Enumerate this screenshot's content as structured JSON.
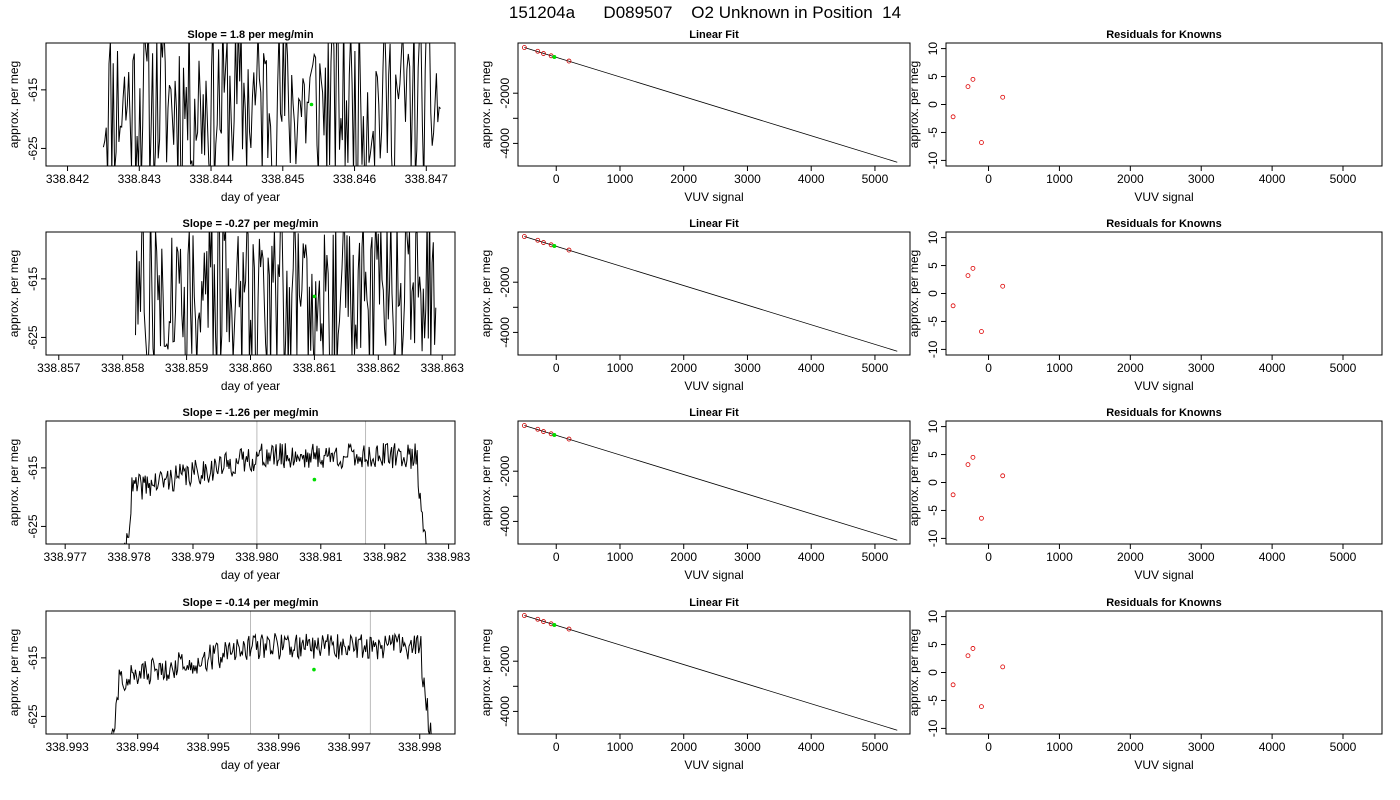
{
  "figure": {
    "title": "151204a      D089507    O2 Unknown in Position  14"
  },
  "chart_data": [
    {
      "type": "line",
      "panel": "timeseries",
      "row": 1,
      "title": "Slope =  1.8  per meg/min",
      "xlabel": "day of year",
      "ylabel": "approx. per meg",
      "xlim": [
        338.8417,
        338.8474
      ],
      "ylim": [
        -628,
        -607
      ],
      "xticks": [
        338.842,
        338.843,
        338.844,
        338.845,
        338.846,
        338.847
      ],
      "xtick_labels": [
        "338.842",
        "338.843",
        "338.844",
        "338.845",
        "338.846",
        "338.847"
      ],
      "yticks": [
        -625,
        -615
      ],
      "ytick_labels": [
        "-625",
        "-615"
      ],
      "x_range": [
        338.8425,
        338.8472
      ],
      "vlines": [],
      "marker": {
        "x": 338.8454,
        "y": -617.5,
        "color": "#00dd00"
      },
      "pattern": "noisy",
      "seed": 11
    },
    {
      "type": "line",
      "panel": "timeseries",
      "row": 2,
      "title": "Slope =  -0.27  per meg/min",
      "xlabel": "day of year",
      "ylabel": "approx. per meg",
      "xlim": [
        338.8568,
        338.8632
      ],
      "ylim": [
        -628,
        -607
      ],
      "xticks": [
        338.857,
        338.858,
        338.859,
        338.86,
        338.861,
        338.862,
        338.863
      ],
      "xtick_labels": [
        "338.857",
        "338.858",
        "338.859",
        "338.860",
        "338.861",
        "338.862",
        "338.863"
      ],
      "yticks": [
        -625,
        -615
      ],
      "ytick_labels": [
        "-625",
        "-615"
      ],
      "x_range": [
        338.8582,
        338.8629
      ],
      "vlines": [],
      "marker": {
        "x": 338.861,
        "y": -618,
        "color": "#00dd00"
      },
      "pattern": "noisy",
      "seed": 27
    },
    {
      "type": "line",
      "panel": "timeseries",
      "row": 3,
      "title": "Slope =  -1.26  per meg/min",
      "xlabel": "day of year",
      "ylabel": "approx. per meg",
      "xlim": [
        338.9767,
        338.9831
      ],
      "ylim": [
        -628,
        -607
      ],
      "xticks": [
        338.977,
        338.978,
        338.979,
        338.98,
        338.981,
        338.982,
        338.983
      ],
      "xtick_labels": [
        "338.977",
        "338.978",
        "338.979",
        "338.980",
        "338.981",
        "338.982",
        "338.983"
      ],
      "yticks": [
        -625,
        -615
      ],
      "ytick_labels": [
        "-625",
        "-615"
      ],
      "x_range": [
        338.9779,
        338.9827
      ],
      "vlines": [
        338.98,
        338.9817
      ],
      "marker": {
        "x": 338.9809,
        "y": -617,
        "color": "#00dd00"
      },
      "pattern": "smooth",
      "seed": 41
    },
    {
      "type": "line",
      "panel": "timeseries",
      "row": 4,
      "title": "Slope =  -0.14  per meg/min",
      "xlabel": "day of year",
      "ylabel": "approx. per meg",
      "xlim": [
        338.9927,
        338.9985
      ],
      "ylim": [
        -628,
        -607
      ],
      "xticks": [
        338.993,
        338.994,
        338.995,
        338.996,
        338.997,
        338.998
      ],
      "xtick_labels": [
        "338.993",
        "338.994",
        "338.995",
        "338.996",
        "338.997",
        "338.998"
      ],
      "yticks": [
        -625,
        -615
      ],
      "ytick_labels": [
        "-625",
        "-615"
      ],
      "x_range": [
        338.9936,
        338.9982
      ],
      "vlines": [
        338.9956,
        338.9973
      ],
      "marker": {
        "x": 338.9965,
        "y": -617,
        "color": "#00dd00"
      },
      "pattern": "smooth",
      "seed": 57
    },
    {
      "type": "scatter",
      "panel": "linearfit",
      "row": 1,
      "title": "Linear Fit",
      "xlabel": "VUV signal",
      "ylabel": "approx. per meg",
      "xlim": [
        -600,
        5550
      ],
      "ylim": [
        -4900,
        0
      ],
      "xticks": [
        0,
        1000,
        2000,
        3000,
        4000,
        5000
      ],
      "xtick_labels": [
        "0",
        "1000",
        "2000",
        "3000",
        "4000",
        "5000"
      ],
      "yticks": [
        -4000,
        -3000,
        -2000
      ],
      "ytick_labels": [
        "-4000",
        "",
        "-2000"
      ],
      "line": {
        "x": [
          -500,
          5350
        ],
        "y": [
          -180,
          -4750
        ]
      },
      "points": [
        {
          "x": -500,
          "y": -180
        },
        {
          "x": -290,
          "y": -330
        },
        {
          "x": -200,
          "y": -420
        },
        {
          "x": -80,
          "y": -510
        },
        {
          "x": 200,
          "y": -720
        }
      ],
      "unknown": {
        "x": -30,
        "y": -560
      }
    },
    {
      "type": "scatter",
      "panel": "linearfit",
      "row": 2,
      "title": "Linear Fit",
      "xlabel": "VUV signal",
      "ylabel": "approx. per meg",
      "xlim": [
        -600,
        5550
      ],
      "ylim": [
        -4900,
        0
      ],
      "xticks": [
        0,
        1000,
        2000,
        3000,
        4000,
        5000
      ],
      "xtick_labels": [
        "0",
        "1000",
        "2000",
        "3000",
        "4000",
        "5000"
      ],
      "yticks": [
        -4000,
        -3000,
        -2000
      ],
      "ytick_labels": [
        "-4000",
        "",
        "-2000"
      ],
      "line": {
        "x": [
          -500,
          5350
        ],
        "y": [
          -180,
          -4750
        ]
      },
      "points": [
        {
          "x": -500,
          "y": -180
        },
        {
          "x": -290,
          "y": -330
        },
        {
          "x": -200,
          "y": -420
        },
        {
          "x": -80,
          "y": -510
        },
        {
          "x": 200,
          "y": -720
        }
      ],
      "unknown": {
        "x": -30,
        "y": -560
      }
    },
    {
      "type": "scatter",
      "panel": "linearfit",
      "row": 3,
      "title": "Linear Fit",
      "xlabel": "VUV signal",
      "ylabel": "approx. per meg",
      "xlim": [
        -600,
        5550
      ],
      "ylim": [
        -4900,
        0
      ],
      "xticks": [
        0,
        1000,
        2000,
        3000,
        4000,
        5000
      ],
      "xtick_labels": [
        "0",
        "1000",
        "2000",
        "3000",
        "4000",
        "5000"
      ],
      "yticks": [
        -4000,
        -3000,
        -2000
      ],
      "ytick_labels": [
        "-4000",
        "",
        "-2000"
      ],
      "line": {
        "x": [
          -500,
          5350
        ],
        "y": [
          -180,
          -4750
        ]
      },
      "points": [
        {
          "x": -500,
          "y": -180
        },
        {
          "x": -290,
          "y": -330
        },
        {
          "x": -200,
          "y": -420
        },
        {
          "x": -80,
          "y": -510
        },
        {
          "x": 200,
          "y": -720
        }
      ],
      "unknown": {
        "x": -30,
        "y": -560
      }
    },
    {
      "type": "scatter",
      "panel": "linearfit",
      "row": 4,
      "title": "Linear Fit",
      "xlabel": "VUV signal",
      "ylabel": "approx. per meg",
      "xlim": [
        -600,
        5550
      ],
      "ylim": [
        -4900,
        0
      ],
      "xticks": [
        0,
        1000,
        2000,
        3000,
        4000,
        5000
      ],
      "xtick_labels": [
        "0",
        "1000",
        "2000",
        "3000",
        "4000",
        "5000"
      ],
      "yticks": [
        -4000,
        -3000,
        -2000
      ],
      "ytick_labels": [
        "-4000",
        "",
        "-2000"
      ],
      "line": {
        "x": [
          -500,
          5350
        ],
        "y": [
          -180,
          -4750
        ]
      },
      "points": [
        {
          "x": -500,
          "y": -180
        },
        {
          "x": -290,
          "y": -330
        },
        {
          "x": -200,
          "y": -420
        },
        {
          "x": -80,
          "y": -510
        },
        {
          "x": 200,
          "y": -720
        }
      ],
      "unknown": {
        "x": -30,
        "y": -560
      }
    },
    {
      "type": "scatter",
      "panel": "residuals",
      "row": 1,
      "title": "Residuals for Knowns",
      "xlabel": "VUV signal",
      "ylabel": "approx. per meg",
      "xlim": [
        -600,
        5550
      ],
      "ylim": [
        -11,
        11
      ],
      "xticks": [
        0,
        1000,
        2000,
        3000,
        4000,
        5000
      ],
      "xtick_labels": [
        "0",
        "1000",
        "2000",
        "3000",
        "4000",
        "5000"
      ],
      "yticks": [
        -10,
        -5,
        0,
        5,
        10
      ],
      "ytick_labels": [
        "-10",
        "-5",
        "0",
        "5",
        "10"
      ],
      "points": [
        {
          "x": -500,
          "y": -2.2
        },
        {
          "x": -290,
          "y": 3.2
        },
        {
          "x": -220,
          "y": 4.5
        },
        {
          "x": -100,
          "y": -6.8
        },
        {
          "x": 200,
          "y": 1.3
        }
      ]
    },
    {
      "type": "scatter",
      "panel": "residuals",
      "row": 2,
      "title": "Residuals for Knowns",
      "xlabel": "VUV signal",
      "ylabel": "approx. per meg",
      "xlim": [
        -600,
        5550
      ],
      "ylim": [
        -11,
        11
      ],
      "xticks": [
        0,
        1000,
        2000,
        3000,
        4000,
        5000
      ],
      "xtick_labels": [
        "0",
        "1000",
        "2000",
        "3000",
        "4000",
        "5000"
      ],
      "yticks": [
        -10,
        -5,
        0,
        5,
        10
      ],
      "ytick_labels": [
        "-10",
        "-5",
        "0",
        "5",
        "10"
      ],
      "points": [
        {
          "x": -500,
          "y": -2.2
        },
        {
          "x": -290,
          "y": 3.2
        },
        {
          "x": -220,
          "y": 4.5
        },
        {
          "x": -100,
          "y": -6.8
        },
        {
          "x": 200,
          "y": 1.3
        }
      ]
    },
    {
      "type": "scatter",
      "panel": "residuals",
      "row": 3,
      "title": "Residuals for Knowns",
      "xlabel": "VUV signal",
      "ylabel": "approx. per meg",
      "xlim": [
        -600,
        5550
      ],
      "ylim": [
        -11,
        11
      ],
      "xticks": [
        0,
        1000,
        2000,
        3000,
        4000,
        5000
      ],
      "xtick_labels": [
        "0",
        "1000",
        "2000",
        "3000",
        "4000",
        "5000"
      ],
      "yticks": [
        -10,
        -5,
        0,
        5,
        10
      ],
      "ytick_labels": [
        "-10",
        "-5",
        "0",
        "5",
        "10"
      ],
      "points": [
        {
          "x": -500,
          "y": -2.2
        },
        {
          "x": -290,
          "y": 3.2
        },
        {
          "x": -220,
          "y": 4.5
        },
        {
          "x": -100,
          "y": -6.4
        },
        {
          "x": 200,
          "y": 1.2
        }
      ]
    },
    {
      "type": "scatter",
      "panel": "residuals",
      "row": 4,
      "title": "Residuals for Knowns",
      "xlabel": "VUV signal",
      "ylabel": "approx. per meg",
      "xlim": [
        -600,
        5550
      ],
      "ylim": [
        -11,
        11
      ],
      "xticks": [
        0,
        1000,
        2000,
        3000,
        4000,
        5000
      ],
      "xtick_labels": [
        "0",
        "1000",
        "2000",
        "3000",
        "4000",
        "5000"
      ],
      "yticks": [
        -10,
        -5,
        0,
        5,
        10
      ],
      "ytick_labels": [
        "-10",
        "-5",
        "0",
        "5",
        "10"
      ],
      "points": [
        {
          "x": -500,
          "y": -2.2
        },
        {
          "x": -290,
          "y": 3.0
        },
        {
          "x": -220,
          "y": 4.3
        },
        {
          "x": -100,
          "y": -6.1
        },
        {
          "x": 200,
          "y": 1.0
        }
      ]
    }
  ],
  "colors": {
    "data_line": "#000000",
    "marker_unknown": "#00dd00",
    "residual_point": "#dd0000",
    "vline": "#bbbbbb",
    "fit_point": "#cc0000"
  }
}
